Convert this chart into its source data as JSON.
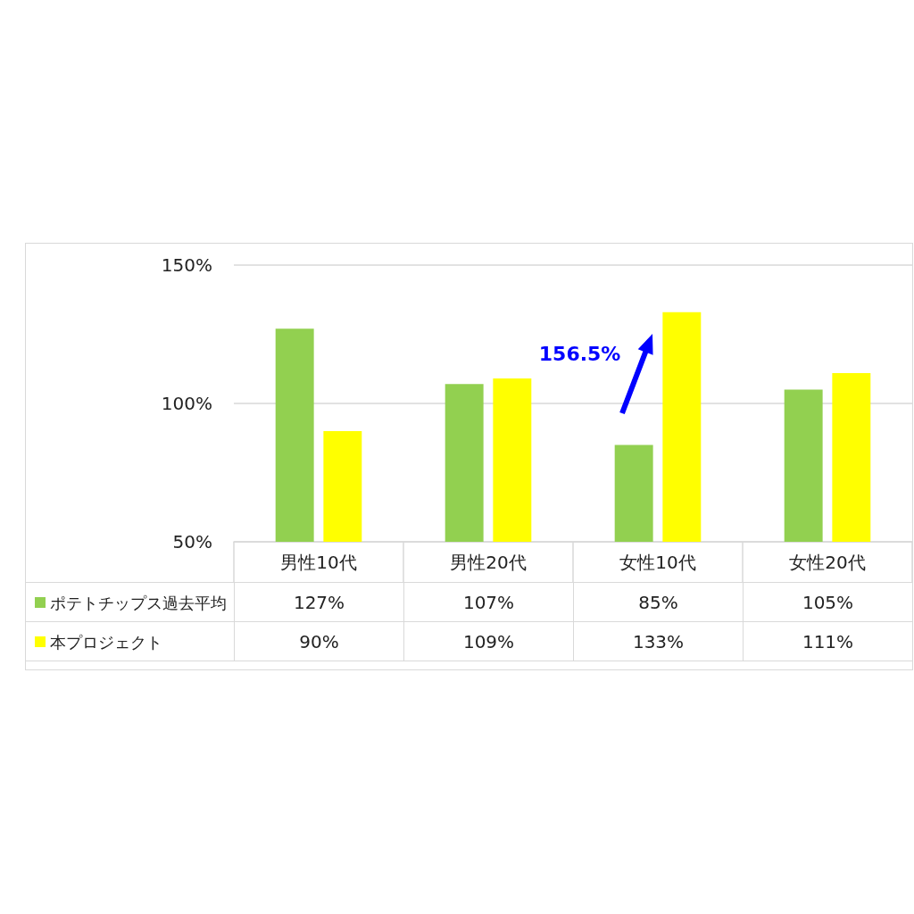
{
  "chart_data": {
    "type": "bar",
    "categories": [
      "男性10代",
      "男性20代",
      "女性10代",
      "女性20代"
    ],
    "series": [
      {
        "name": "ポテトチップス過去平均",
        "color": "#92d050",
        "values": [
          127,
          107,
          85,
          105
        ],
        "value_labels": [
          "127%",
          "107%",
          "85%",
          "105%"
        ]
      },
      {
        "name": "本プロジェクト",
        "color": "#ffff00",
        "values": [
          90,
          109,
          133,
          111
        ],
        "value_labels": [
          "90%",
          "109%",
          "133%",
          "111%"
        ]
      }
    ],
    "ylim": [
      50,
      150
    ],
    "yticks": [
      {
        "value": 50,
        "label": "50%"
      },
      {
        "value": 100,
        "label": "100%"
      },
      {
        "value": 150,
        "label": "150%"
      }
    ],
    "grid": "y",
    "legend": "bottom left",
    "annotations": [
      "156.5%"
    ]
  }
}
